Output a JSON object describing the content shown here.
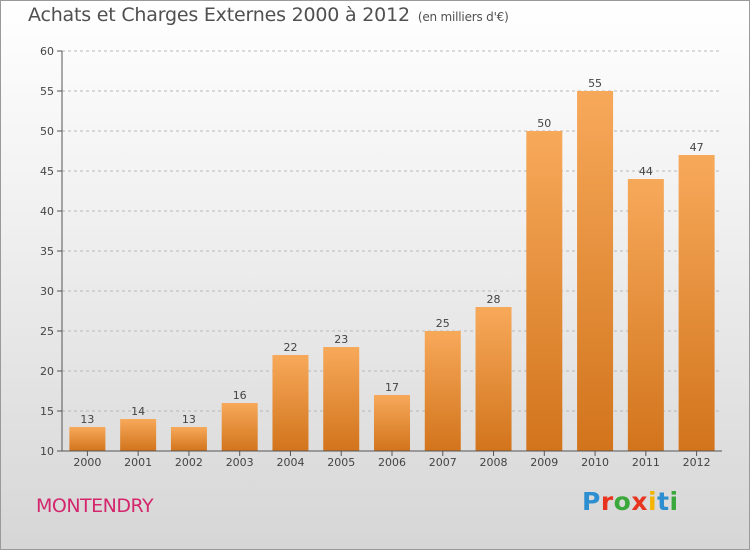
{
  "header": {
    "title": "Achats et Charges Externes 2000 à 2012",
    "unit": "(en milliers d'€)"
  },
  "footer": {
    "location": "MONTENDRY",
    "brand": "Proxiti"
  },
  "brand_colors": [
    "#2e8fd0",
    "#e8341f",
    "#3aa83a",
    "#e8341f",
    "#f4b400",
    "#2e8fd0",
    "#3aa83a"
  ],
  "chart_data": {
    "type": "bar",
    "title": "Achats et Charges Externes 2000 à 2012",
    "subtitle": "(en milliers d'€)",
    "categories": [
      "2000",
      "2001",
      "2002",
      "2003",
      "2004",
      "2005",
      "2006",
      "2007",
      "2008",
      "2009",
      "2010",
      "2011",
      "2012"
    ],
    "values": [
      13,
      14,
      13,
      16,
      22,
      23,
      17,
      25,
      28,
      50,
      55,
      44,
      47
    ],
    "data_labels": [
      "13",
      "14",
      "13",
      "16",
      "22",
      "23",
      "17",
      "25",
      "28",
      "50",
      "55",
      "44",
      "47"
    ],
    "ylim": [
      10,
      60
    ],
    "yticks": [
      10,
      15,
      20,
      25,
      30,
      35,
      40,
      45,
      50,
      55,
      60
    ],
    "grid": "horizontal dashed",
    "bar_color_top": "#f7a95a",
    "bar_color_bottom": "#d2741c",
    "xlabel": "",
    "ylabel": ""
  }
}
